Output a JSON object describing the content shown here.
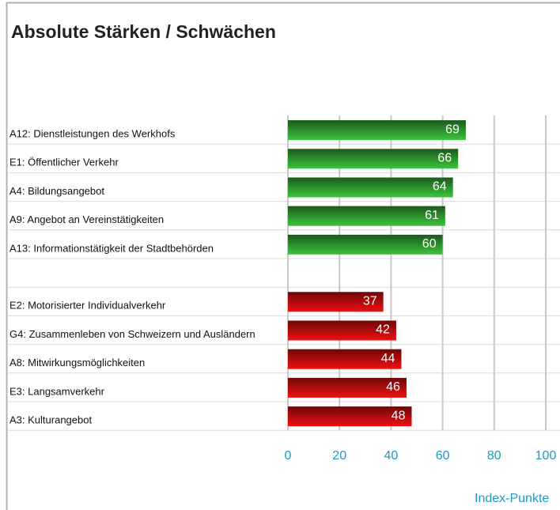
{
  "chart_data": {
    "type": "barh",
    "title": "Absolute Stärken / Schwächen",
    "xlabel": "Index-Punkte",
    "categories": [
      "A12: Dienstleistungen des Werkhofs",
      "E1: Öffentlicher Verkehr",
      "A4: Bildungsangebot",
      "A9: Angebot an Vereinstätigkeiten",
      "A13: Informationstätigkeit der Stadtbehörden",
      null,
      "E2: Motorisierter Individualverkehr",
      "G4: Zusammenleben von Schweizern und Ausländern",
      "A8: Mitwirkungsmöglichkeiten",
      "E3: Langsamverkehr",
      "A3: Kulturangebot"
    ],
    "values": [
      69,
      66,
      64,
      61,
      60,
      null,
      37,
      42,
      44,
      46,
      48
    ],
    "colors": [
      "#3cc43c",
      "#3cc43c",
      "#3cc43c",
      "#3cc43c",
      "#3cc43c",
      null,
      "#f01010",
      "#f01010",
      "#f01010",
      "#f01010",
      "#f01010"
    ],
    "xlim": [
      0,
      100
    ],
    "xticks": [
      0,
      20,
      40,
      60,
      80,
      100
    ],
    "grid": true
  }
}
